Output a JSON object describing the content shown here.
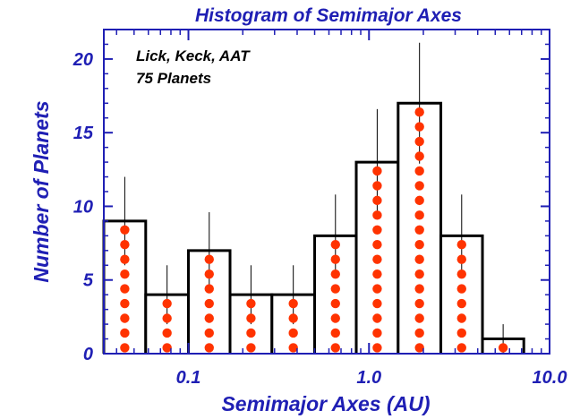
{
  "chart_data": {
    "type": "bar",
    "title": "Histogram of Semimajor Axes",
    "xlabel": "Semimajor Axes   (AU)",
    "ylabel": "Number of Planets",
    "x_scale": "log",
    "xlim_au": [
      0.034,
      10.0
    ],
    "ylim": [
      0,
      22
    ],
    "y_ticks": [
      "0",
      "5",
      "10",
      "15",
      "20"
    ],
    "y_tick_values": [
      0,
      5,
      10,
      15,
      20
    ],
    "x_ticks": [
      "0.1",
      "1.0",
      "10.0"
    ],
    "x_tick_values": [
      0.1,
      1.0,
      10.0
    ],
    "annotations": [
      "Lick, Keck, AAT",
      "75 Planets"
    ],
    "bins": [
      {
        "lo": 0.034,
        "hi": 0.058,
        "count": 9,
        "err": [
          6,
          12
        ]
      },
      {
        "lo": 0.058,
        "hi": 0.1,
        "count": 4,
        "err": [
          2,
          6
        ]
      },
      {
        "lo": 0.1,
        "hi": 0.17,
        "count": 7,
        "err": [
          4.4,
          9.6
        ]
      },
      {
        "lo": 0.17,
        "hi": 0.29,
        "count": 4,
        "err": [
          2,
          6
        ]
      },
      {
        "lo": 0.29,
        "hi": 0.5,
        "count": 4,
        "err": [
          2,
          6
        ]
      },
      {
        "lo": 0.5,
        "hi": 0.85,
        "count": 8,
        "err": [
          5.2,
          10.8
        ]
      },
      {
        "lo": 0.85,
        "hi": 1.45,
        "count": 13,
        "err": [
          9.4,
          16.6
        ]
      },
      {
        "lo": 1.45,
        "hi": 2.5,
        "count": 17,
        "err": [
          12.9,
          21.1
        ]
      },
      {
        "lo": 2.5,
        "hi": 4.25,
        "count": 8,
        "err": [
          5.2,
          10.8
        ]
      },
      {
        "lo": 4.25,
        "hi": 7.2,
        "count": 1,
        "err": [
          0,
          2
        ]
      }
    ],
    "colors": {
      "axes": "#1f1fb4",
      "bar_edge": "#000000",
      "dots": "#ff3300",
      "errorbar": "#000000"
    }
  }
}
